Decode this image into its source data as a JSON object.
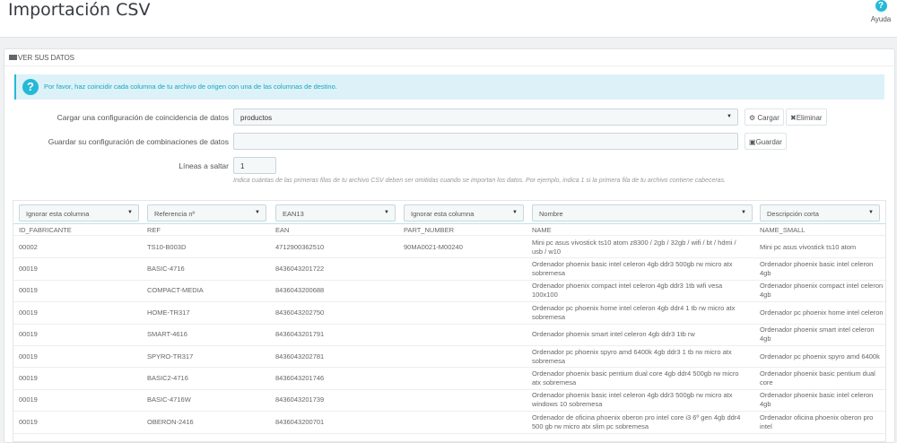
{
  "header": {
    "title": "Importación CSV",
    "help_label": "Ayuda"
  },
  "panel": {
    "title": "VER SUS DATOS",
    "alert": "Por favor, haz coincidir cada columna de tu archivo de origen con una de las columnas de destino.",
    "load_label": "Cargar una configuración de coincidencia de datos",
    "load_value": "productos",
    "load_button": "Cargar",
    "delete_button": "Eliminar",
    "save_label": "Guardar su configuración de combinaciones de datos",
    "save_value": "",
    "save_button": "Guardar",
    "skip_label": "Líneas a saltar",
    "skip_value": "1",
    "skip_hint": "Indica cuántas de las primeras filas de tu archivo CSV deben ser omitidas cuando se importan los datos. Por ejemplo, indica 1 si la primera fila de tu archivo contiene cabeceras."
  },
  "table": {
    "selects": [
      "Ignorar esta columna",
      "Referencia nº",
      "EAN13",
      "Ignorar esta columna",
      "Nombre",
      "Descripción corta"
    ],
    "headers": [
      "ID_FABRICANTE",
      "REF",
      "EAN",
      "PART_NUMBER",
      "NAME",
      "NAME_SMALL"
    ],
    "rows": [
      [
        "00002",
        "TS10-B003D",
        "4712900362510",
        "90MA0021-M00240",
        "Mini pc asus vivostick ts10 atom z8300 / 2gb / 32gb / wifi / bt / hdmi / usb / w10",
        "Mini pc asus vivostick ts10 atom"
      ],
      [
        "00019",
        "BASIC-4716",
        "8436043201722",
        "",
        "Ordenador phoenix basic intel celeron 4gb ddr3 500gb rw micro atx sobremesa",
        "Ordenador phoenix basic intel celeron 4gb"
      ],
      [
        "00019",
        "COMPACT-MEDIA",
        "8436043200688",
        "",
        "Ordenador phoenix compact intel celeron 4gb ddr3 1tb wifi vesa 100x100",
        "Ordenador phoenix compact intel celeron 4gb"
      ],
      [
        "00019",
        "HOME-TR317",
        "8436043202750",
        "",
        "Ordenador pc phoenix home intel celeron 4gb ddr4 1 tb rw micro atx sobremesa",
        "Ordenador pc phoenix home intel celeron"
      ],
      [
        "00019",
        "SMART-4616",
        "8436043201791",
        "",
        "Ordenador phoenix smart intel celeron 4gb ddr3 1tb rw",
        "Ordenador phoenix smart intel celeron 4gb"
      ],
      [
        "00019",
        "SPYRO-TR317",
        "8436043202781",
        "",
        "Ordenador pc phoenix spyro amd 6400k 4gb ddr3 1 tb rw micro atx sobremesa",
        "Ordenador pc phoenix spyro amd 6400k"
      ],
      [
        "00019",
        "BASIC2-4716",
        "8436043201746",
        "",
        "Ordenador phoenix basic pentium dual core 4gb ddr4 500gb rw micro atx sobremesa",
        "Ordenador phoenix basic pentium dual core"
      ],
      [
        "00019",
        "BASIC-4716W",
        "8436043201739",
        "",
        "Ordenador phoenix basic intel celeron 4gb ddr3 500gb rw micro atx windows 10 sobremesa",
        "Ordenador phoenix basic intel celeron 4gb"
      ],
      [
        "00019",
        "OBERON-2416",
        "8436043200701",
        "",
        "Ordenador de oficina phoenix oberon pro intel core i3 6º gen 4gb ddr4 500 gb rw micro atx slim pc sobremesa",
        "Ordenador oficina phoenix oberon pro intel"
      ]
    ]
  },
  "colors": {
    "accent": "#25b9d7",
    "alert_bg": "#dcf2f8"
  }
}
